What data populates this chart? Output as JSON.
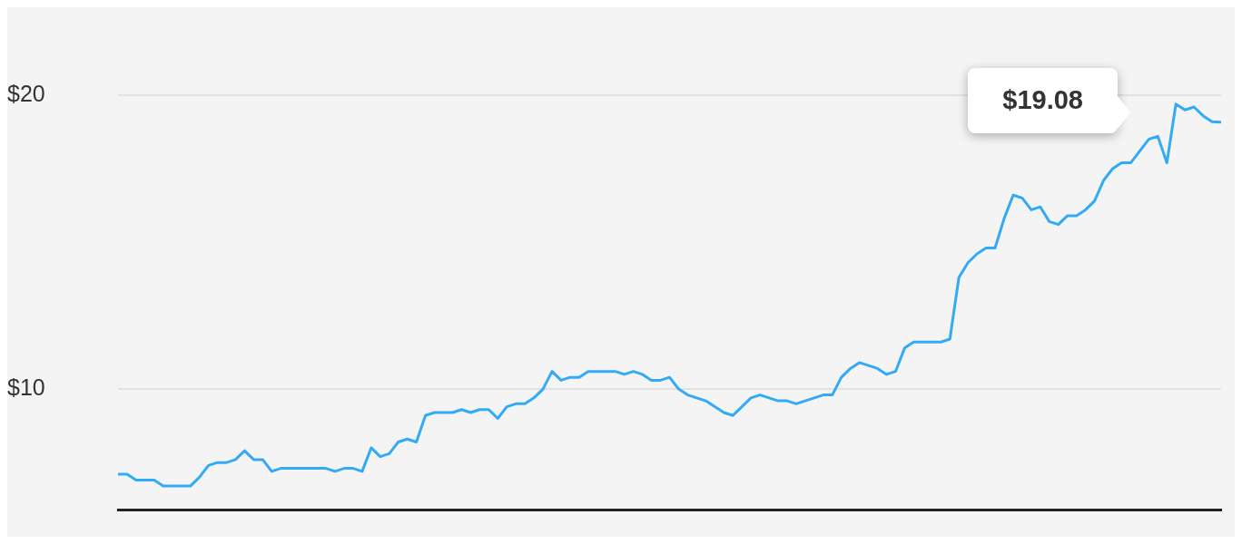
{
  "chart_data": {
    "type": "line",
    "categories": [
      null,
      null,
      null,
      null,
      null,
      null,
      null,
      null,
      null,
      null,
      null,
      null,
      null,
      null,
      null,
      null,
      null,
      null,
      null,
      null,
      null,
      null,
      null,
      null,
      null,
      null,
      null,
      null,
      null,
      null,
      null,
      null,
      null,
      null,
      null,
      null,
      null,
      null,
      null,
      null,
      null,
      null,
      null,
      null,
      null,
      null,
      null,
      null,
      null,
      null,
      null,
      null,
      null,
      null,
      null,
      null,
      null,
      null,
      null,
      null,
      null,
      null,
      null,
      null,
      null,
      null,
      null,
      null,
      null,
      null,
      null,
      null,
      null,
      null,
      null,
      null,
      null,
      null,
      null,
      null,
      null,
      null,
      null,
      null,
      null,
      null,
      null,
      null,
      null,
      null,
      null,
      null,
      null,
      null,
      null,
      null,
      null,
      null,
      null,
      null,
      null,
      null,
      null,
      null,
      null,
      null,
      null,
      null,
      null,
      null,
      null,
      null,
      null,
      null,
      null,
      null,
      null,
      null,
      null,
      null,
      null,
      null,
      null
    ],
    "series": [
      {
        "color": "#33aaf5",
        "values": [
          7.1,
          7.1,
          6.9,
          6.9,
          6.9,
          6.7,
          6.7,
          6.7,
          6.7,
          7.0,
          7.4,
          7.5,
          7.5,
          7.6,
          7.9,
          7.6,
          7.6,
          7.2,
          7.3,
          7.3,
          7.3,
          7.3,
          7.3,
          7.3,
          7.2,
          7.3,
          7.3,
          7.2,
          8.0,
          7.7,
          7.8,
          8.2,
          8.3,
          8.2,
          9.1,
          9.2,
          9.2,
          9.2,
          9.3,
          9.2,
          9.3,
          9.3,
          9.0,
          9.4,
          9.5,
          9.5,
          9.7,
          10.0,
          10.6,
          10.3,
          10.4,
          10.4,
          10.6,
          10.6,
          10.6,
          10.6,
          10.5,
          10.6,
          10.5,
          10.3,
          10.3,
          10.4,
          10.0,
          9.8,
          9.7,
          9.6,
          9.4,
          9.2,
          9.1,
          9.4,
          9.7,
          9.8,
          9.7,
          9.6,
          9.6,
          9.5,
          9.6,
          9.7,
          9.8,
          9.8,
          10.4,
          10.7,
          10.9,
          10.8,
          10.7,
          10.5,
          10.6,
          11.4,
          11.6,
          11.6,
          11.6,
          11.6,
          11.7,
          13.8,
          14.3,
          14.6,
          14.8,
          14.8,
          15.8,
          16.6,
          16.5,
          16.1,
          16.2,
          15.7,
          15.6,
          15.9,
          15.9,
          16.1,
          16.4,
          17.1,
          17.5,
          17.7,
          17.7,
          18.1,
          18.5,
          18.6,
          17.7,
          19.7,
          19.5,
          19.6,
          19.3,
          19.1,
          19.08
        ]
      }
    ],
    "ylim": [
      5.9,
      20
    ],
    "yticks": [
      {
        "value": 10,
        "label": "$10"
      },
      {
        "value": 20,
        "label": "$20"
      }
    ],
    "grid": "y",
    "legend": false,
    "marker": "none",
    "line_style": "solid",
    "annotations": [
      "$19.08"
    ]
  }
}
